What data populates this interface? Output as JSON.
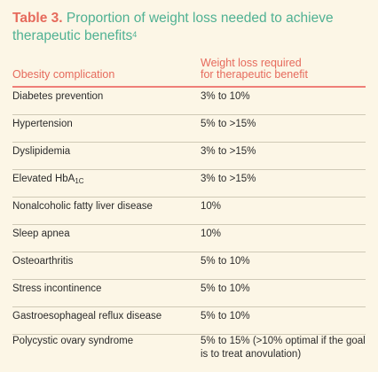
{
  "title": {
    "number": "Table 3.",
    "text": " Proportion of weight loss needed to achieve therapeutic benefits",
    "ref": "4"
  },
  "header": {
    "col1": "Obesity complication",
    "col2_line1": "Weight loss required",
    "col2_line2": "for therapeutic benefit"
  },
  "rows": [
    {
      "complication": "Diabetes prevention",
      "weight_loss": "3% to 10%"
    },
    {
      "complication": "Hypertension",
      "weight_loss": "5% to >15%"
    },
    {
      "complication": "Dyslipidemia",
      "weight_loss": "3% to >15%"
    },
    {
      "complication": "Elevated HbA",
      "complication_sub": "1C",
      "weight_loss": "3% to >15%"
    },
    {
      "complication": "Nonalcoholic fatty liver disease",
      "weight_loss": "10%"
    },
    {
      "complication": "Sleep apnea",
      "weight_loss": "10%"
    },
    {
      "complication": "Osteoarthritis",
      "weight_loss": "5% to 10%"
    },
    {
      "complication": "Stress incontinence",
      "weight_loss": "5% to 10%"
    },
    {
      "complication": "Gastroesophageal reflux disease",
      "weight_loss": "5% to 10%"
    },
    {
      "complication": "Polycystic ovary syndrome",
      "weight_loss": "5% to 15% (>10% optimal if the goal is to treat anovulation)"
    }
  ],
  "colors": {
    "background": "#fcf6e6",
    "title_green": "#4fb193",
    "accent_coral": "#e66a5c"
  }
}
